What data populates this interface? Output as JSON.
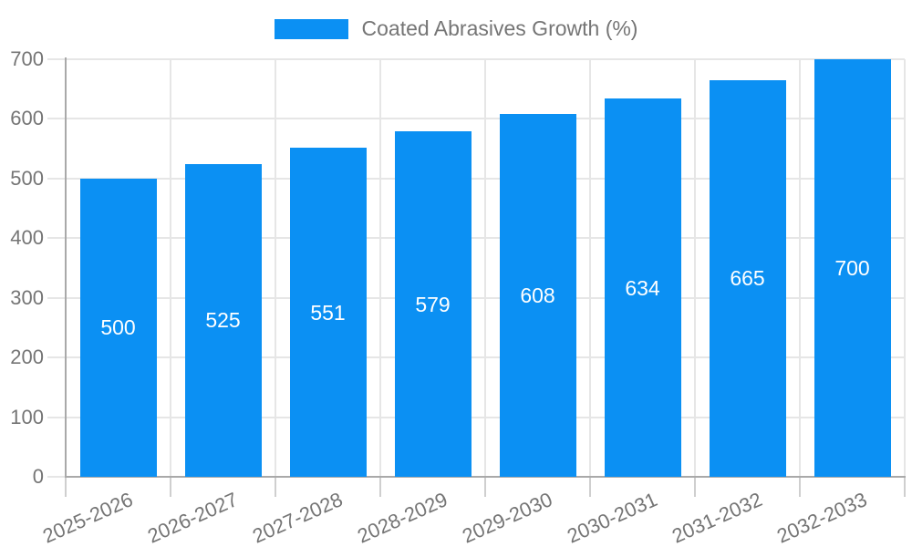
{
  "chart_data": {
    "type": "bar",
    "title": "",
    "legend": {
      "label": "Coated Abrasives Growth (%)",
      "position": "top"
    },
    "categories": [
      "2025-2026",
      "2026-2027",
      "2027-2028",
      "2028-2029",
      "2029-2030",
      "2030-2031",
      "2031-2032",
      "2032-2033"
    ],
    "series": [
      {
        "name": "Coated Abrasives Growth (%)",
        "values": [
          500,
          525,
          551,
          579,
          608,
          634,
          665,
          700
        ],
        "color": "#0b90f3"
      }
    ],
    "bar_value_labels": [
      "500",
      "525",
      "551",
      "579",
      "608",
      "634",
      "665",
      "700"
    ],
    "xlabel": "",
    "ylabel": "",
    "ylim": [
      0,
      700
    ],
    "y_ticks": [
      0,
      100,
      200,
      300,
      400,
      500,
      600,
      700
    ],
    "grid": true,
    "value_labels_inside_bars": true,
    "x_label_rotation_deg": -24,
    "colors": {
      "bar": "#0b90f3",
      "bar_label_text": "#ffffff",
      "axis_text": "#757575",
      "gridline": "#e6e6e6",
      "axis_line": "#a9a9a9",
      "tick": "#cfcfcf",
      "background": "#ffffff"
    }
  }
}
